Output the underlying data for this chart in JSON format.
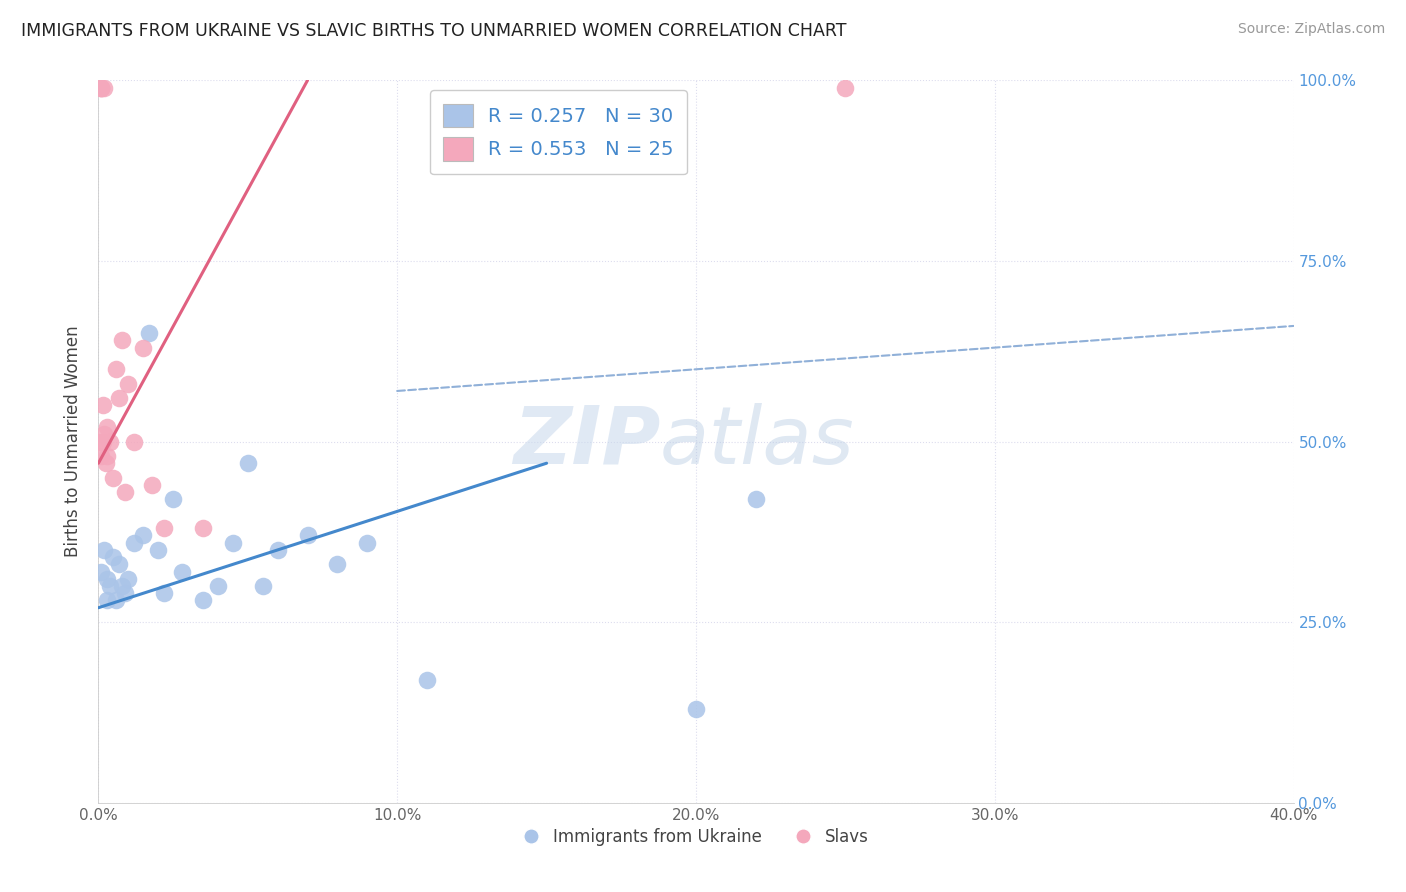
{
  "title": "IMMIGRANTS FROM UKRAINE VS SLAVIC BIRTHS TO UNMARRIED WOMEN CORRELATION CHART",
  "source": "Source: ZipAtlas.com",
  "ylabel": "Births to Unmarried Women",
  "x_tick_labels": [
    "0.0%",
    "10.0%",
    "20.0%",
    "30.0%",
    "40.0%"
  ],
  "x_tick_values": [
    0.0,
    10.0,
    20.0,
    30.0,
    40.0
  ],
  "y_tick_labels_right": [
    "0.0%",
    "25.0%",
    "50.0%",
    "75.0%",
    "100.0%"
  ],
  "y_tick_values": [
    0.0,
    25.0,
    50.0,
    75.0,
    100.0
  ],
  "R_ukraine": "0.257",
  "N_ukraine": "30",
  "R_slavs": "0.553",
  "N_slavs": "25",
  "blue_scatter_color": "#aac4e8",
  "pink_scatter_color": "#f4a8bc",
  "blue_line_color": "#4488cc",
  "pink_line_color": "#e06080",
  "dashed_line_color": "#90b0d8",
  "watermark_color": "#ccdaee",
  "watermark_text": "ZIPatlas",
  "blue_line_x0": 0.0,
  "blue_line_y0": 27.0,
  "blue_line_x1": 15.0,
  "blue_line_y1": 47.0,
  "pink_line_x0": 0.0,
  "pink_line_y0": 47.0,
  "pink_line_x1": 7.0,
  "pink_line_y1": 100.0,
  "dash_line_x0": 10.0,
  "dash_line_y0": 57.0,
  "dash_line_x1": 40.0,
  "dash_line_y1": 66.0,
  "ukraine_points_x": [
    0.1,
    0.2,
    0.3,
    0.3,
    0.4,
    0.5,
    0.6,
    0.7,
    0.8,
    0.9,
    1.0,
    1.2,
    1.5,
    1.7,
    2.0,
    2.2,
    2.5,
    2.8,
    3.5,
    4.0,
    4.5,
    5.0,
    5.5,
    6.0,
    7.0,
    8.0,
    9.0,
    11.0,
    20.0,
    22.0
  ],
  "ukraine_points_y": [
    32,
    35,
    31,
    28,
    30,
    34,
    28,
    33,
    30,
    29,
    31,
    36,
    37,
    65,
    35,
    29,
    42,
    32,
    28,
    30,
    36,
    47,
    30,
    35,
    37,
    33,
    36,
    17,
    13,
    42
  ],
  "slavs_points_x": [
    0.05,
    0.1,
    0.15,
    0.2,
    0.25,
    0.3,
    0.3,
    0.4,
    0.5,
    0.6,
    0.7,
    0.8,
    0.9,
    1.0,
    1.2,
    1.5,
    1.8,
    2.2,
    3.5,
    0.1,
    0.1,
    0.1,
    0.2,
    0.15,
    25.0
  ],
  "slavs_points_y": [
    50,
    48,
    50,
    51,
    47,
    52,
    48,
    50,
    45,
    60,
    56,
    64,
    43,
    58,
    50,
    63,
    44,
    38,
    38,
    99,
    99,
    99,
    99,
    55,
    99
  ]
}
